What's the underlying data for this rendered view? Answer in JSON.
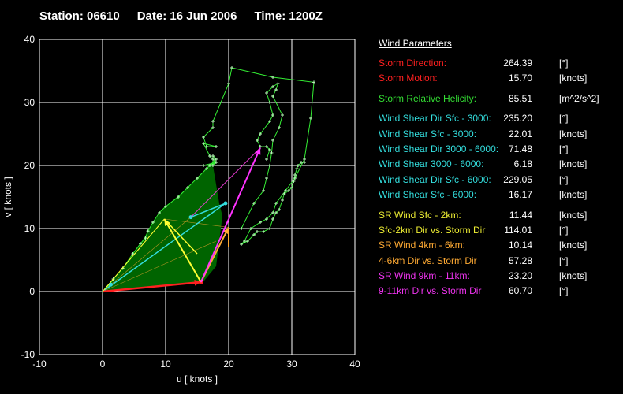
{
  "header": {
    "station": "Station: 06610",
    "date": "Date: 16 Jun 2006",
    "time": "Time: 1200Z"
  },
  "params_title": "Wind Parameters",
  "params": [
    {
      "label": "Storm Direction:",
      "value": "264.39",
      "unit": "[°]",
      "color": "#ff2020"
    },
    {
      "label": "Storm Motion:",
      "value": "15.70",
      "unit": "[knots]",
      "color": "#ff2020",
      "gap_after": true
    },
    {
      "label": "Storm Relative Helicity:",
      "value": "85.51",
      "unit": "[m^2/s^2]",
      "color": "#33dd33",
      "gap_after": true
    },
    {
      "label": "Wind Shear Dir Sfc - 3000:",
      "value": "235.20",
      "unit": "[°]",
      "color": "#33dddd"
    },
    {
      "label": "Wind Shear Sfc - 3000:",
      "value": "22.01",
      "unit": "[knots]",
      "color": "#33dddd"
    },
    {
      "label": "Wind Shear Dir 3000 - 6000:",
      "value": "71.48",
      "unit": "[°]",
      "color": "#33dddd"
    },
    {
      "label": "Wind Shear 3000 - 6000:",
      "value": "6.18",
      "unit": "[knots]",
      "color": "#33dddd"
    },
    {
      "label": "Wind Shear Dir Sfc - 6000:",
      "value": "229.05",
      "unit": "[°]",
      "color": "#33dddd"
    },
    {
      "label": "Wind Shear Sfc - 6000:",
      "value": "16.17",
      "unit": "[knots]",
      "color": "#33dddd",
      "gap_after": true
    },
    {
      "label": "SR Wind Sfc - 2km:",
      "value": "11.44",
      "unit": "[knots]",
      "color": "#eeee33"
    },
    {
      "label": "Sfc-2km Dir vs. Storm Dir",
      "value": "114.01",
      "unit": "[°]",
      "color": "#eeee33"
    },
    {
      "label": "SR Wind 4km - 6km:",
      "value": "10.14",
      "unit": "[knots]",
      "color": "#ffaa33"
    },
    {
      "label": "4-6km Dir vs. Storm Dir",
      "value": "57.28",
      "unit": "[°]",
      "color": "#ffaa33"
    },
    {
      "label": "SR Wind 9km - 11km:",
      "value": "23.20",
      "unit": "[knots]",
      "color": "#ee33ee"
    },
    {
      "label": "9-11km Dir vs. Storm Dir",
      "value": "60.70",
      "unit": "[°]",
      "color": "#ee33ee"
    }
  ],
  "chart_data": {
    "type": "hodograph",
    "xlabel": "u  [ knots ]",
    "ylabel": "v  [ knots ]",
    "xlim": [
      -10,
      40
    ],
    "ylim": [
      -10,
      40
    ],
    "xticks": [
      -10,
      0,
      10,
      20,
      30,
      40
    ],
    "yticks": [
      -10,
      0,
      10,
      20,
      30,
      40
    ],
    "grid": true,
    "colors": {
      "hodograph": "#33ee33",
      "fill": "#006400",
      "storm": "#ff2020",
      "sr_sfc_2km": "#ffff33",
      "sr_4_6km": "#ffaa33",
      "sr_9_11km": "#ff33ff",
      "shear": "#33dddd",
      "mean": "#ffaa33"
    },
    "hodograph": [
      [
        0,
        0
      ],
      [
        1.1,
        1.1
      ],
      [
        1.7,
        2.0
      ],
      [
        3.2,
        3.7
      ],
      [
        4.8,
        6.0
      ],
      [
        6,
        7.6
      ],
      [
        6.8,
        8.5
      ],
      [
        7.2,
        9.6
      ],
      [
        8,
        11
      ],
      [
        9,
        12.5
      ],
      [
        10,
        13.5
      ],
      [
        12,
        15
      ],
      [
        13.5,
        16.5
      ],
      [
        15,
        18
      ],
      [
        16.5,
        19.5
      ],
      [
        18,
        21
      ],
      [
        17.5,
        21.5
      ],
      [
        17.5,
        20
      ],
      [
        18,
        20.5
      ],
      [
        17,
        20
      ],
      [
        16,
        20
      ],
      [
        18,
        20.5
      ],
      [
        17.5,
        21
      ],
      [
        17,
        21.5
      ],
      [
        16,
        23.5
      ],
      [
        18,
        23
      ],
      [
        16.5,
        23
      ],
      [
        16,
        24.5
      ],
      [
        17.5,
        26
      ],
      [
        17.5,
        27
      ],
      [
        20,
        33
      ],
      [
        20.5,
        35.5
      ],
      [
        27,
        34
      ],
      [
        33.5,
        33.2
      ],
      [
        33,
        27.5
      ],
      [
        32,
        21
      ],
      [
        30.5,
        18
      ],
      [
        29,
        16
      ],
      [
        27.5,
        14
      ],
      [
        27,
        12.5
      ],
      [
        26,
        11.5
      ],
      [
        25,
        11
      ],
      [
        23.5,
        10
      ],
      [
        22.5,
        8
      ],
      [
        22,
        7.5
      ],
      [
        23,
        8
      ],
      [
        24,
        9
      ],
      [
        24.5,
        9.5
      ],
      [
        25.5,
        9.5
      ],
      [
        26.5,
        10
      ],
      [
        27,
        11.5
      ],
      [
        27.5,
        12.5
      ],
      [
        28,
        13
      ],
      [
        28.5,
        14.5
      ],
      [
        28.8,
        15.5
      ],
      [
        29.5,
        16
      ],
      [
        30,
        16.5
      ],
      [
        30.3,
        17.5
      ],
      [
        30.5,
        18.5
      ],
      [
        30.8,
        19.5
      ],
      [
        31,
        20
      ],
      [
        31.5,
        20.5
      ],
      [
        32,
        20.5
      ]
    ],
    "upper_hodograph": [
      [
        22,
        10
      ],
      [
        24,
        14
      ],
      [
        25.5,
        16
      ],
      [
        26,
        18
      ],
      [
        26.5,
        20
      ],
      [
        26.8,
        22
      ],
      [
        27,
        24
      ],
      [
        28,
        26
      ],
      [
        28.5,
        28
      ],
      [
        27,
        31
      ],
      [
        27.5,
        32
      ],
      [
        27.8,
        33
      ],
      [
        27,
        32.5
      ],
      [
        26,
        31.5
      ],
      [
        26.5,
        30
      ],
      [
        27,
        28
      ],
      [
        26.5,
        27
      ],
      [
        25,
        25
      ],
      [
        24.5,
        24
      ],
      [
        25,
        23
      ],
      [
        26,
        23
      ],
      [
        26.5,
        22.5
      ],
      [
        26,
        21
      ]
    ],
    "storm_motion": [
      15.6,
      1.5
    ],
    "sfc_2km_wind": [
      9.8,
      11.5
    ],
    "km4_6_wind": [
      20,
      10.2
    ],
    "km9_11_wind": [
      25,
      22.8
    ],
    "shear_sfc_3000": [
      19.5,
      14
    ],
    "shear_3000_6000": [
      14,
      11.8
    ]
  }
}
